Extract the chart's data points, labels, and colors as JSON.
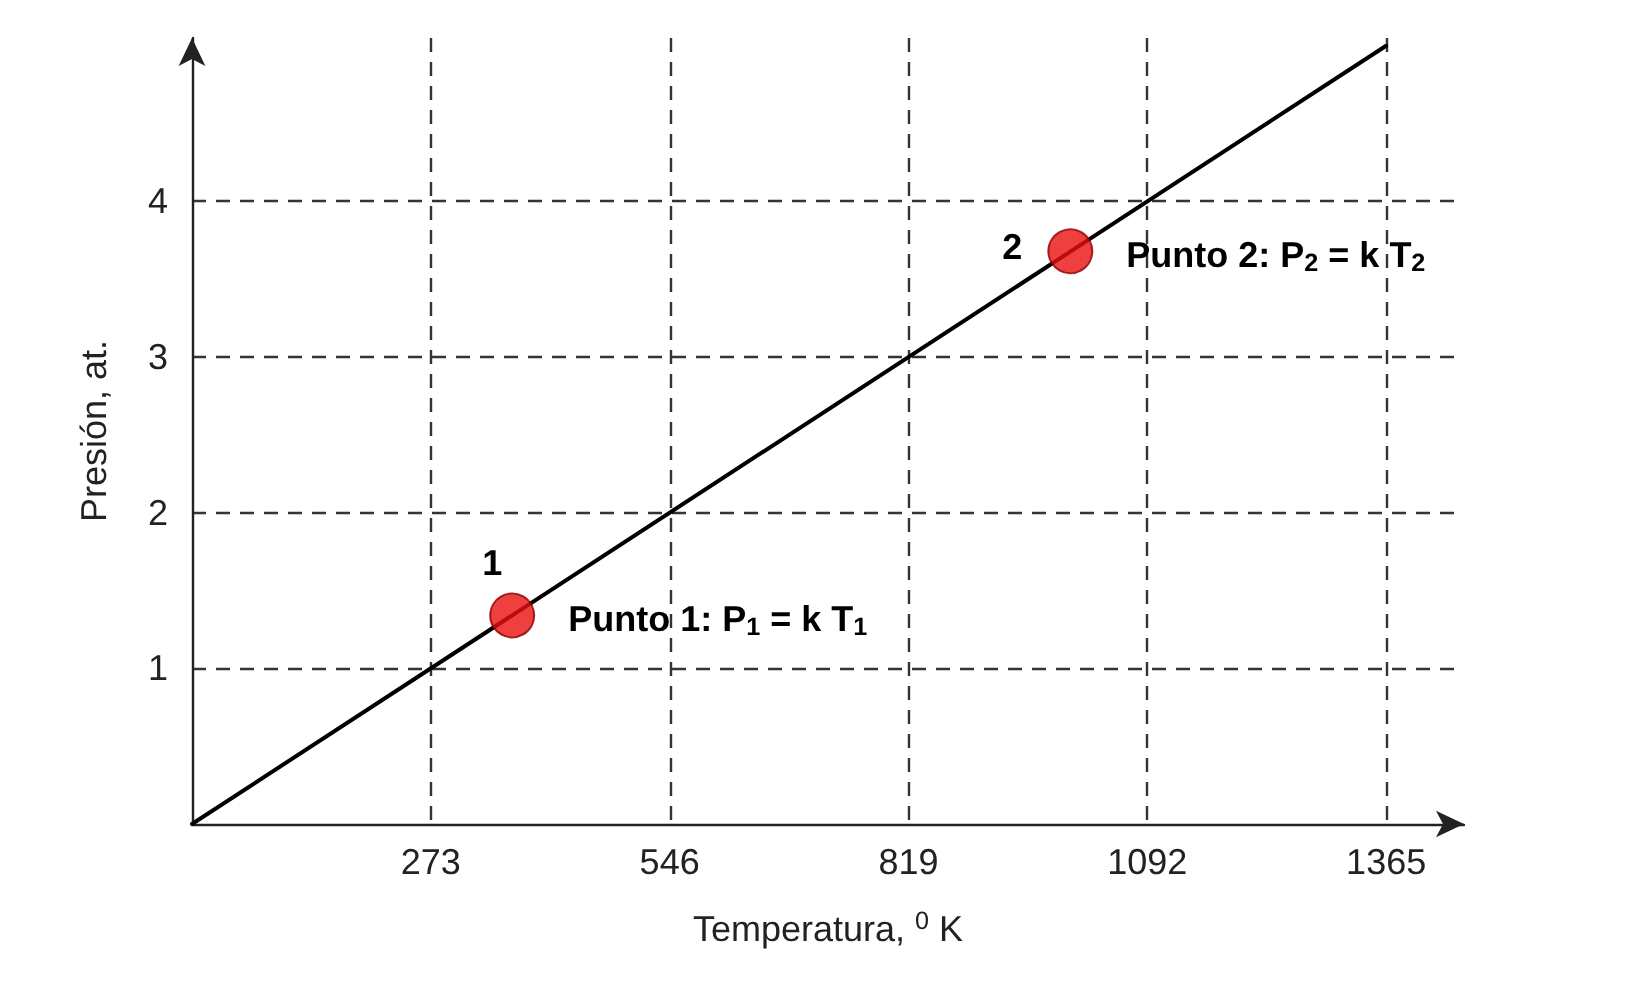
{
  "chart_data": {
    "type": "line",
    "xlabel": "Temperatura, $^{0}$ K",
    "ylabel": "Presión, at.",
    "xlim": [
      0,
      1454
    ],
    "ylim": [
      0,
      5.05
    ],
    "xticks": [
      273,
      546,
      819,
      1092,
      1365
    ],
    "yticks": [
      1,
      2,
      3,
      4
    ],
    "grid": true,
    "series": [
      {
        "color": "#000000",
        "x": [
          0,
          1365
        ],
        "values": [
          0,
          5
        ],
        "marker": "none",
        "line_style": "solid"
      },
      {
        "type": "scatter",
        "color": "#e8100f",
        "x": [
          366,
          1004
        ],
        "values": [
          1.34,
          3.68
        ],
        "marker": "circle"
      }
    ],
    "annotations": [
      "1",
      "Punto 1: P$_{1}$ = k T$_{1}$",
      "2",
      "Punto 2: P$_{2}$ = k T$_{2}$"
    ]
  }
}
